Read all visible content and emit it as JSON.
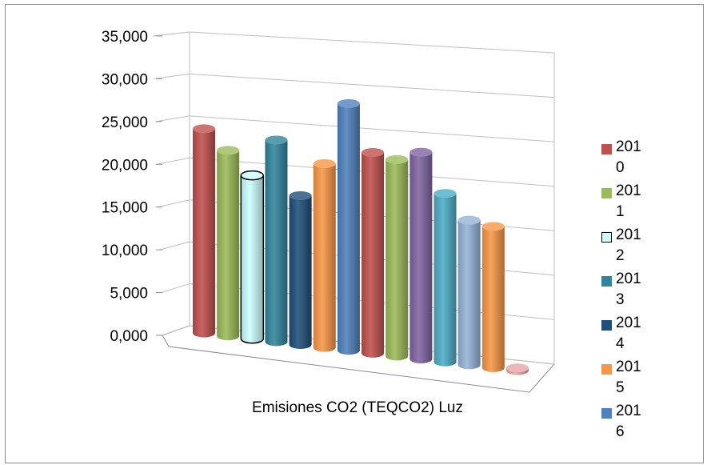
{
  "chart_data": {
    "type": "bar",
    "title": "",
    "xlabel": "Emisiones CO2 (TEQCO2) Luz",
    "ylabel": "",
    "categories": [
      "Emisiones CO2 (TEQCO2) Luz"
    ],
    "ylim": [
      0,
      35000
    ],
    "y_ticks": [
      "0,000",
      "5,000",
      "10,000",
      "15,000",
      "20,000",
      "25,000",
      "30,000",
      "35,000"
    ],
    "grid": true,
    "legend_position": "right",
    "series": [
      {
        "name": "2010",
        "values": [
          24000
        ],
        "color": "#c0504d"
      },
      {
        "name": "2011",
        "values": [
          21800
        ],
        "color": "#9bbb59"
      },
      {
        "name": "2012",
        "values": [
          19200
        ],
        "color": "#ccffff"
      },
      {
        "name": "2013",
        "values": [
          23700
        ],
        "color": "#31849b"
      },
      {
        "name": "2014",
        "values": [
          17500
        ],
        "color": "#1f4e79"
      },
      {
        "name": "2015",
        "values": [
          21600
        ],
        "color": "#f79646"
      },
      {
        "name": "2016",
        "values": [
          29000
        ],
        "color": "#4f81bd"
      },
      {
        "name": "",
        "values": [
          23600
        ],
        "color": "#c0504d"
      },
      {
        "name": "",
        "values": [
          23100
        ],
        "color": "#9bbb59"
      },
      {
        "name": "",
        "values": [
          24300
        ],
        "color": "#8064a2"
      },
      {
        "name": "",
        "values": [
          19800
        ],
        "color": "#4bacc6"
      },
      {
        "name": "",
        "values": [
          17000
        ],
        "color": "#95b3d7"
      },
      {
        "name": "",
        "values": [
          16600
        ],
        "color": "#f79646"
      },
      {
        "name": "",
        "values": [
          300
        ],
        "color": "#e6a5a5"
      }
    ]
  },
  "legend": [
    {
      "label": "2010",
      "color": "#c0504d"
    },
    {
      "label": "2011",
      "color": "#9bbb59"
    },
    {
      "label": "2012",
      "color": "#ccffff"
    },
    {
      "label": "2013",
      "color": "#31849b"
    },
    {
      "label": "2014",
      "color": "#1f4e79"
    },
    {
      "label": "2015",
      "color": "#f79646"
    },
    {
      "label": "2016",
      "color": "#4f81bd"
    }
  ]
}
